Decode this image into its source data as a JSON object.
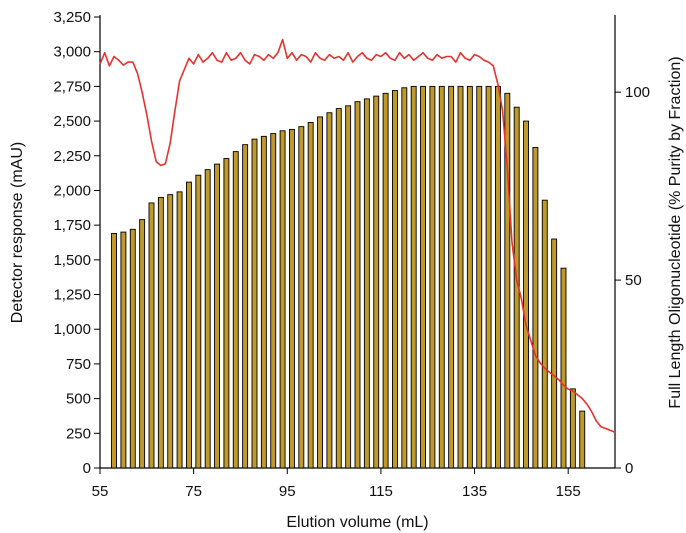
{
  "chart_data": {
    "type": "bar",
    "xlabel": "Elution volume (mL)",
    "ylabel": "Detector response (mAU)",
    "y2label": "Full Length Oligonucleotide (% Purity by Fraction)",
    "xlim": [
      55,
      165
    ],
    "ylim": [
      0,
      3250
    ],
    "y2lim": [
      0,
      120
    ],
    "x_ticks": [
      55,
      75,
      95,
      115,
      135,
      155
    ],
    "x_tick_labels": [
      "55",
      "75",
      "95",
      "115",
      "135",
      "155"
    ],
    "y_ticks": [
      0,
      250,
      500,
      750,
      1000,
      1250,
      1500,
      1750,
      2000,
      2250,
      2500,
      2750,
      3000,
      3250
    ],
    "y_tick_labels": [
      "0",
      "250",
      "500",
      "750",
      "1,000",
      "1,250",
      "1,500",
      "1,750",
      "2,000",
      "2,250",
      "2,500",
      "2,750",
      "3,000",
      "3,250"
    ],
    "y2_ticks": [
      0,
      50,
      100
    ],
    "y2_tick_labels": [
      "0",
      "50",
      "100"
    ],
    "grid": false,
    "series": [
      {
        "kind": "bar",
        "axis": "left",
        "color": "#BF9A2A",
        "x": [
          58,
          60,
          62,
          64,
          66,
          68,
          70,
          72,
          74,
          76,
          78,
          80,
          82,
          84,
          86,
          88,
          90,
          92,
          94,
          96,
          98,
          100,
          102,
          104,
          106,
          108,
          110,
          112,
          114,
          116,
          118,
          120,
          122,
          124,
          126,
          128,
          130,
          132,
          134,
          136,
          138,
          140,
          142,
          144,
          146,
          148,
          150,
          152,
          154,
          156,
          158
        ],
        "values": [
          1690,
          1700,
          1720,
          1790,
          1910,
          1950,
          1970,
          1990,
          2060,
          2110,
          2150,
          2190,
          2230,
          2280,
          2330,
          2370,
          2390,
          2410,
          2430,
          2440,
          2460,
          2490,
          2530,
          2560,
          2590,
          2610,
          2640,
          2660,
          2680,
          2700,
          2720,
          2740,
          2750,
          2750,
          2750,
          2750,
          2750,
          2750,
          2750,
          2750,
          2750,
          2750,
          2700,
          2600,
          2500,
          2310,
          1930,
          1650,
          1440,
          570,
          410
        ]
      },
      {
        "kind": "line",
        "axis": "right",
        "color": "#E8322F",
        "x": [
          55,
          56,
          57,
          58,
          59,
          60,
          61,
          62,
          63,
          64,
          65,
          66,
          67,
          68,
          69,
          70,
          71,
          72,
          73,
          74,
          75,
          76,
          77,
          78,
          79,
          80,
          81,
          82,
          83,
          84,
          85,
          86,
          87,
          88,
          89,
          90,
          91,
          92,
          93,
          94,
          95,
          96,
          97,
          98,
          99,
          100,
          101,
          102,
          103,
          104,
          105,
          106,
          107,
          108,
          109,
          110,
          111,
          112,
          113,
          114,
          115,
          116,
          117,
          118,
          119,
          120,
          121,
          122,
          123,
          124,
          125,
          126,
          127,
          128,
          129,
          130,
          131,
          132,
          133,
          134,
          135,
          136,
          137,
          138,
          139,
          140,
          141,
          142,
          143,
          144,
          145,
          146,
          147,
          148,
          149,
          150,
          151,
          152,
          153,
          154,
          155,
          156,
          157,
          158,
          159,
          160,
          161,
          162,
          163,
          164,
          165
        ],
        "values": [
          107.5,
          110.5,
          107.0,
          109.5,
          108.5,
          107.2,
          108.0,
          108.0,
          105.0,
          100.0,
          94.0,
          87.0,
          81.5,
          80.5,
          81.0,
          86.5,
          95.0,
          103.0,
          106.0,
          109.0,
          107.5,
          110.0,
          108.0,
          109.0,
          110.5,
          108.5,
          108.0,
          110.5,
          108.5,
          109.0,
          110.5,
          108.5,
          107.5,
          110.0,
          109.5,
          108.5,
          110.0,
          109.0,
          110.5,
          114.0,
          109.0,
          110.5,
          108.5,
          110.0,
          109.5,
          108.0,
          110.5,
          109.0,
          108.5,
          110.0,
          109.0,
          109.5,
          108.5,
          110.5,
          108.0,
          109.5,
          110.5,
          109.0,
          108.5,
          110.0,
          109.5,
          110.5,
          109.0,
          108.5,
          110.5,
          109.0,
          110.0,
          108.5,
          109.5,
          110.5,
          109.0,
          108.5,
          110.0,
          109.0,
          109.5,
          109.5,
          108.0,
          110.5,
          109.0,
          108.5,
          110.0,
          109.5,
          108.5,
          108.0,
          107.0,
          102.0,
          95.0,
          80.0,
          60.0,
          50.0,
          45.0,
          38.0,
          34.0,
          30.0,
          28.0,
          26.5,
          25.5,
          24.5,
          23.5,
          22.0,
          21.0,
          20.5,
          19.5,
          18.5,
          17.0,
          15.0,
          12.5,
          11.0,
          10.5,
          10.0,
          9.5
        ]
      }
    ]
  }
}
